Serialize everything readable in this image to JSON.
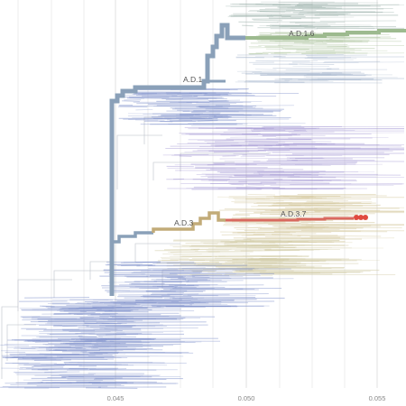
{
  "axis": {
    "ticks": [
      "0.045",
      "0.050",
      "0.055"
    ]
  },
  "clades": [
    {
      "id": "ad1",
      "label": "A.D.1",
      "color": "#8aa0b8"
    },
    {
      "id": "ad16",
      "label": "A.D.1.6",
      "color": "#9dba8f"
    },
    {
      "id": "ad3",
      "label": "A.D.3",
      "color": "#c2ab78"
    },
    {
      "id": "ad37",
      "label": "A.D.3.7",
      "color": "#d9695f"
    }
  ],
  "colors": {
    "grid": "#e6e6e6",
    "trunk": "#8aa0b8",
    "blue_branches": "#7d8fc9",
    "purple_branches": "#9b8fd0",
    "tan_branches": "#d6c9a0",
    "highlight_red": "#e04a3f"
  }
}
